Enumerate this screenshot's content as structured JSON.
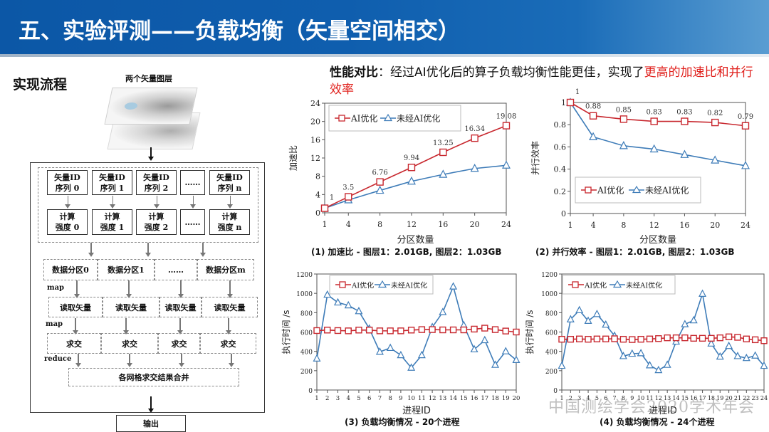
{
  "header": {
    "title": "五、实验评测——负载均衡（矢量空间相交）"
  },
  "flow": {
    "section_title": "实现流程",
    "layers_label": "两个矢量图层",
    "id_sequences": [
      "矢量ID\n序列 0",
      "矢量ID\n序列 1",
      "矢量ID\n序列 2",
      "……",
      "矢量ID\n序列 n"
    ],
    "intensities": [
      "计算\n强度 0",
      "计算\n强度 1",
      "计算\n强度 2",
      "……",
      "计算\n强度 n"
    ],
    "partitions": [
      "数据分区0",
      "数据分区1",
      "……",
      "数据分区m"
    ],
    "read_vectors": [
      "读取矢量",
      "读取矢量",
      "读取矢量",
      "读取矢量"
    ],
    "intersects": [
      "求交",
      "求交",
      "求交",
      "求交"
    ],
    "tags": {
      "map1": "map",
      "map2": "map",
      "reduce": "reduce"
    },
    "merge": "各网格求交结果合并",
    "output": "输出"
  },
  "perf": {
    "label": "性能对比",
    "sep": "：",
    "text": "经过AI优化后的算子负载均衡性能更佳，实现了",
    "highlight": "更高的加速比和并行效率"
  },
  "legend": {
    "ai": "AI优化",
    "no_ai": "未经AI优化"
  },
  "colors": {
    "ai": "#c8282f",
    "no_ai": "#3e7cb8",
    "header": "#0f5eae",
    "highlight": "#e0201c"
  },
  "watermark": "中国测绘学会2020学术年会",
  "chart_data": [
    {
      "type": "line",
      "title": "",
      "caption": "(1)  加速比 - 图层1：2.01GB, 图层2：1.03GB",
      "xlabel": "分区数量",
      "ylabel": "加速比",
      "x": [
        1,
        4,
        8,
        12,
        16,
        20,
        24
      ],
      "ylim": [
        0,
        24
      ],
      "yticks": [
        0,
        4,
        8,
        12,
        16,
        20,
        24
      ],
      "series": [
        {
          "name": "AI优化",
          "values": [
            1,
            3.5,
            6.76,
            9.94,
            13.25,
            16.34,
            19.08
          ],
          "labels": [
            "1",
            "3.5",
            "6.76",
            "9.94",
            "13.25",
            "16.34",
            "19.08"
          ]
        },
        {
          "name": "未经AI优化",
          "values": [
            1,
            2.8,
            4.9,
            6.9,
            8.4,
            9.7,
            10.4
          ]
        }
      ],
      "legend_position": "top-left"
    },
    {
      "type": "line",
      "title": "",
      "caption": "(2)  并行效率 - 图层1：2.01GB, 图层2：1.03GB",
      "xlabel": "分区数量",
      "ylabel": "并行效率",
      "x": [
        1,
        4,
        8,
        12,
        16,
        20,
        24
      ],
      "ylim": [
        0,
        1
      ],
      "yticks": [
        0,
        0.2,
        0.4,
        0.6,
        0.8,
        1
      ],
      "series": [
        {
          "name": "AI优化",
          "values": [
            1,
            0.88,
            0.85,
            0.83,
            0.83,
            0.82,
            0.79
          ],
          "labels": [
            "1",
            "0.88",
            "0.85",
            "0.83",
            "0.83",
            "0.82",
            "0.79"
          ]
        },
        {
          "name": "未经AI优化",
          "values": [
            1,
            0.69,
            0.61,
            0.58,
            0.53,
            0.48,
            0.43
          ]
        }
      ],
      "legend_position": "bottom-left"
    },
    {
      "type": "line",
      "title": "",
      "caption": "(3) 负载均衡情况 - 20个进程",
      "xlabel": "进程ID",
      "ylabel": "执行时间 /s",
      "x": [
        1,
        2,
        3,
        4,
        5,
        6,
        7,
        8,
        9,
        10,
        11,
        12,
        13,
        14,
        15,
        16,
        17,
        18,
        19,
        20
      ],
      "ylim": [
        0,
        1200
      ],
      "yticks": [
        0,
        200,
        400,
        600,
        800,
        1000,
        1200
      ],
      "series": [
        {
          "name": "AI优化",
          "values": [
            615,
            620,
            615,
            612,
            620,
            620,
            612,
            612,
            612,
            620,
            625,
            625,
            622,
            622,
            622,
            630,
            640,
            625,
            610,
            600
          ]
        },
        {
          "name": "未经AI优化",
          "values": [
            325,
            985,
            905,
            875,
            815,
            635,
            395,
            435,
            360,
            230,
            360,
            650,
            805,
            1070,
            670,
            420,
            515,
            260,
            400,
            310
          ]
        }
      ],
      "legend_position": "top"
    },
    {
      "type": "line",
      "title": "",
      "caption": "(4) 负载均衡情况 - 24个进程",
      "xlabel": "进程ID",
      "ylabel": "执行时间 /s",
      "x": [
        1,
        2,
        3,
        4,
        5,
        6,
        7,
        8,
        9,
        10,
        11,
        12,
        13,
        14,
        15,
        16,
        17,
        18,
        19,
        20,
        21,
        22,
        23,
        24
      ],
      "ylim": [
        0,
        1200
      ],
      "yticks": [
        0,
        200,
        400,
        600,
        800,
        1000,
        1200
      ],
      "series": [
        {
          "name": "AI优化",
          "values": [
            525,
            525,
            528,
            525,
            528,
            528,
            530,
            525,
            522,
            525,
            528,
            532,
            540,
            540,
            540,
            535,
            535,
            535,
            540,
            550,
            545,
            528,
            520,
            510
          ]
        },
        {
          "name": "未经AI优化",
          "values": [
            250,
            730,
            825,
            715,
            785,
            675,
            560,
            350,
            375,
            380,
            255,
            205,
            260,
            500,
            680,
            720,
            995,
            480,
            345,
            455,
            350,
            330,
            355,
            250
          ]
        }
      ],
      "legend_position": "top"
    }
  ]
}
